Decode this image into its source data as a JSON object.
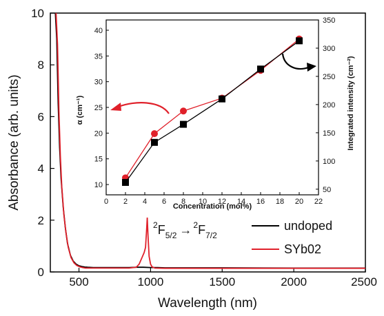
{
  "chart_data": [
    {
      "type": "line",
      "xlabel": "Wavelength (nm)",
      "ylabel": "Absorbance (arb. units)",
      "xlim": [
        300,
        2500
      ],
      "ylim": [
        0,
        10
      ],
      "xticks": [
        "500",
        "1000",
        "1500",
        "2000",
        "2500"
      ],
      "yticks": [
        "0",
        "2",
        "4",
        "6",
        "8",
        "10"
      ],
      "grid": false,
      "legend_position": "right-middle",
      "series": [
        {
          "name": "undoped",
          "color": "#000000",
          "x": [
            335,
            345,
            355,
            365,
            375,
            390,
            405,
            420,
            440,
            460,
            480,
            500,
            520,
            540,
            560,
            600,
            700,
            800,
            850,
            900,
            950,
            1000,
            1050,
            1100,
            1200,
            1500,
            2000,
            2500
          ],
          "y": [
            10,
            9.0,
            6.5,
            4.8,
            3.6,
            2.5,
            1.7,
            1.1,
            0.65,
            0.42,
            0.3,
            0.24,
            0.21,
            0.19,
            0.18,
            0.17,
            0.17,
            0.17,
            0.17,
            0.18,
            0.18,
            0.17,
            0.17,
            0.16,
            0.16,
            0.16,
            0.15,
            0.15
          ]
        },
        {
          "name": "SYb02",
          "color": "#e0202a",
          "x": [
            340,
            350,
            360,
            370,
            380,
            395,
            410,
            425,
            445,
            465,
            485,
            505,
            525,
            545,
            565,
            600,
            700,
            800,
            850,
            900,
            920,
            940,
            955,
            965,
            972,
            977,
            982,
            990,
            1000,
            1010,
            1030,
            1100,
            1200,
            1500,
            2000,
            2500
          ],
          "y": [
            10,
            8.8,
            6.2,
            4.5,
            3.3,
            2.2,
            1.5,
            0.95,
            0.55,
            0.35,
            0.25,
            0.2,
            0.17,
            0.15,
            0.15,
            0.15,
            0.15,
            0.15,
            0.15,
            0.18,
            0.3,
            0.55,
            0.75,
            0.95,
            1.6,
            2.1,
            1.4,
            0.6,
            0.3,
            0.2,
            0.15,
            0.14,
            0.14,
            0.14,
            0.14,
            0.14
          ]
        }
      ]
    },
    {
      "type": "line",
      "xlabel": "Concentration (mol%)",
      "ylabel": "α (cm⁻¹)",
      "y2label": "Integrated intensity (cm⁻²)",
      "xlim": [
        0,
        22
      ],
      "ylim": [
        8,
        42
      ],
      "y2lim": [
        40,
        350
      ],
      "xticks": [
        "0",
        "2",
        "4",
        "6",
        "8",
        "10",
        "12",
        "14",
        "16",
        "18",
        "20",
        "22"
      ],
      "yticks": [
        "10",
        "15",
        "20",
        "25",
        "30",
        "35",
        "40"
      ],
      "y2ticks": [
        "50",
        "100",
        "150",
        "200",
        "250",
        "300",
        "350"
      ],
      "series": [
        {
          "color": "#e0202a",
          "marker": "circle",
          "axis": "left",
          "x": [
            2,
            5,
            8,
            12,
            16,
            20
          ],
          "y": [
            11.3,
            19.9,
            24.3,
            26.8,
            32.2,
            38.3
          ]
        },
        {
          "color": "#000000",
          "marker": "square",
          "axis": "right",
          "x": [
            2,
            5,
            8,
            12,
            16,
            20
          ],
          "y": [
            62,
            133,
            165,
            210,
            263,
            313
          ]
        }
      ]
    }
  ],
  "annotation": {
    "transition_main_sup": "2",
    "transition_main_base": "F",
    "transition_main_sub": "5/2",
    "transition_arrow": "→",
    "transition_end_sup": "2",
    "transition_end_base": "F",
    "transition_end_sub": "7/2"
  }
}
